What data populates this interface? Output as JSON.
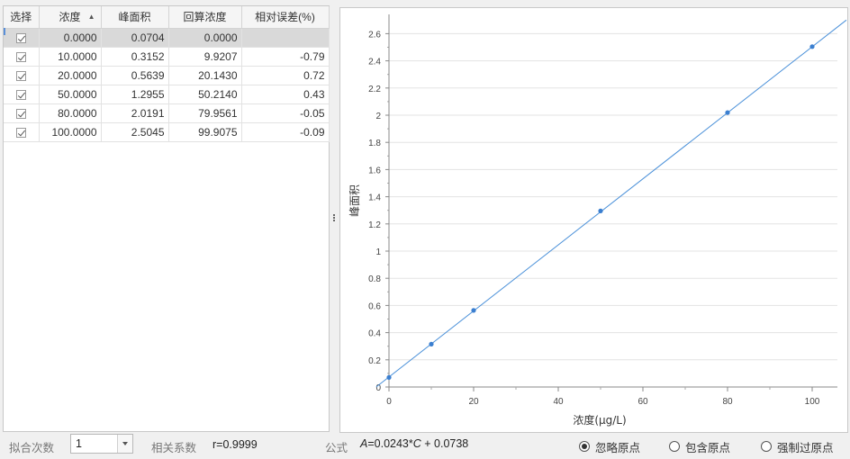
{
  "table": {
    "headers": [
      "选择",
      "浓度",
      "峰面积",
      "回算浓度",
      "相对误差(%)"
    ],
    "rows": [
      {
        "checked": true,
        "conc": "0.0000",
        "area": "0.0704",
        "back": "0.0000",
        "err": ""
      },
      {
        "checked": true,
        "conc": "10.0000",
        "area": "0.3152",
        "back": "9.9207",
        "err": "-0.79"
      },
      {
        "checked": true,
        "conc": "20.0000",
        "area": "0.5639",
        "back": "20.1430",
        "err": "0.72"
      },
      {
        "checked": true,
        "conc": "50.0000",
        "area": "1.2955",
        "back": "50.2140",
        "err": "0.43"
      },
      {
        "checked": true,
        "conc": "80.0000",
        "area": "2.0191",
        "back": "79.9561",
        "err": "-0.05"
      },
      {
        "checked": true,
        "conc": "100.0000",
        "area": "2.5045",
        "back": "99.9075",
        "err": "-0.09"
      }
    ]
  },
  "chart_data": {
    "type": "scatter",
    "title": "",
    "xlabel": "浓度(μg/L)",
    "ylabel": "峰面积",
    "xlim": [
      0,
      108
    ],
    "ylim": [
      0,
      2.7
    ],
    "xticks": [
      0,
      20,
      40,
      60,
      80,
      100
    ],
    "yticks": [
      0,
      0.2,
      0.4,
      0.6,
      0.8,
      1,
      1.2,
      1.4,
      1.6,
      1.8,
      2,
      2.2,
      2.4,
      2.6
    ],
    "grid": "horizontal",
    "series": [
      {
        "x": [
          0,
          10,
          20,
          50,
          80,
          100
        ],
        "y": [
          0.0704,
          0.3152,
          0.5639,
          1.2955,
          2.0191,
          2.5045
        ]
      }
    ],
    "fit_line": {
      "slope": 0.0243,
      "intercept": 0.0738
    },
    "colors": {
      "line": "#4a90d9",
      "point": "#3b7fd0"
    }
  },
  "bottom": {
    "fit_order_label": "拟合次数",
    "fit_order_value": "1",
    "corr_label": "相关系数",
    "corr_value": "r=0.9999",
    "formula_label": "公式",
    "formula_a": "A",
    "formula_mid": "=0.0243*",
    "formula_c": "C",
    "formula_tail": " + 0.0738",
    "radio_ignore": "忽略原点",
    "radio_include": "包含原点",
    "radio_force": "强制过原点"
  }
}
